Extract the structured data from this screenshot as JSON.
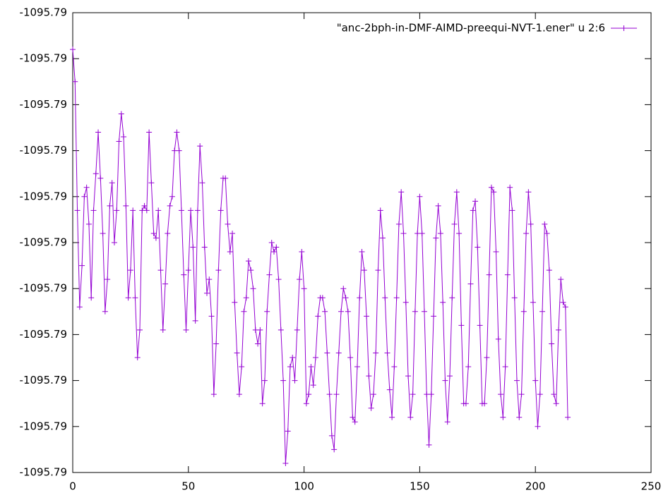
{
  "chart_data": {
    "type": "line",
    "x": [
      0,
      1,
      2,
      3,
      4,
      5,
      6,
      7,
      8,
      9,
      10,
      11,
      12,
      13,
      14,
      15,
      16,
      17,
      18,
      19,
      20,
      21,
      22,
      23,
      24,
      25,
      26,
      27,
      28,
      29,
      30,
      31,
      32,
      33,
      34,
      35,
      36,
      37,
      38,
      39,
      40,
      41,
      42,
      43,
      44,
      45,
      46,
      47,
      48,
      49,
      50,
      51,
      52,
      53,
      54,
      55,
      56,
      57,
      58,
      59,
      60,
      61,
      62,
      63,
      64,
      65,
      66,
      67,
      68,
      69,
      70,
      71,
      72,
      73,
      74,
      75,
      76,
      77,
      78,
      79,
      80,
      81,
      82,
      83,
      84,
      85,
      86,
      87,
      88,
      89,
      90,
      91,
      92,
      93,
      94,
      95,
      96,
      97,
      98,
      99,
      100,
      101,
      102,
      103,
      104,
      105,
      106,
      107,
      108,
      109,
      110,
      111,
      112,
      113,
      114,
      115,
      116,
      117,
      118,
      119,
      120,
      121,
      122,
      123,
      124,
      125,
      126,
      127,
      128,
      129,
      130,
      131,
      132,
      133,
      134,
      135,
      136,
      137,
      138,
      139,
      140,
      141,
      142,
      143,
      144,
      145,
      146,
      147,
      148,
      149,
      150,
      151,
      152,
      153,
      154,
      155,
      156,
      157,
      158,
      159,
      160,
      161,
      162,
      163,
      164,
      165,
      166,
      167,
      168,
      169,
      170,
      171,
      172,
      173,
      174,
      175,
      176,
      177,
      178,
      179,
      180,
      181,
      182,
      183,
      184,
      185,
      186,
      187,
      188,
      189,
      190,
      191,
      192,
      193,
      194,
      195,
      196,
      197,
      198,
      199,
      200,
      201,
      202,
      203,
      204,
      205,
      206,
      207,
      208,
      209,
      210,
      211,
      212,
      213,
      214
    ],
    "series": [
      {
        "name": "\"anc-2bph-in-DMF-AIMD-preequi-NVT-1.ener\" u 2:6",
        "color": "#9400d3",
        "values": [
          -1095.7874,
          -1095.78775,
          -1095.78915,
          -1095.7902,
          -1095.78975,
          -1095.789,
          -1095.7889,
          -1095.7893,
          -1095.7901,
          -1095.78915,
          -1095.78875,
          -1095.7883,
          -1095.7888,
          -1095.7894,
          -1095.79025,
          -1095.7899,
          -1095.7891,
          -1095.78885,
          -1095.7895,
          -1095.78915,
          -1095.7884,
          -1095.7881,
          -1095.78835,
          -1095.7891,
          -1095.7901,
          -1095.7898,
          -1095.78915,
          -1095.7901,
          -1095.79075,
          -1095.79045,
          -1095.78915,
          -1095.7891,
          -1095.78915,
          -1095.7883,
          -1095.78885,
          -1095.7894,
          -1095.78945,
          -1095.78915,
          -1095.7898,
          -1095.79045,
          -1095.78995,
          -1095.7894,
          -1095.7891,
          -1095.789,
          -1095.7885,
          -1095.7883,
          -1095.7885,
          -1095.78915,
          -1095.78985,
          -1095.79045,
          -1095.7898,
          -1095.78915,
          -1095.78955,
          -1095.79035,
          -1095.78915,
          -1095.78845,
          -1095.78885,
          -1095.78955,
          -1095.79005,
          -1095.7899,
          -1095.7903,
          -1095.79115,
          -1095.7906,
          -1095.7898,
          -1095.78915,
          -1095.7888,
          -1095.7888,
          -1095.7893,
          -1095.7896,
          -1095.7894,
          -1095.79015,
          -1095.7907,
          -1095.79115,
          -1095.79085,
          -1095.79025,
          -1095.7901,
          -1095.7897,
          -1095.7898,
          -1095.79,
          -1095.79045,
          -1095.7906,
          -1095.79045,
          -1095.79125,
          -1095.791,
          -1095.79025,
          -1095.78985,
          -1095.7895,
          -1095.7896,
          -1095.78955,
          -1095.7899,
          -1095.79045,
          -1095.791,
          -1095.7919,
          -1095.79155,
          -1095.79085,
          -1095.79075,
          -1095.791,
          -1095.79045,
          -1095.7899,
          -1095.7896,
          -1095.79,
          -1095.79125,
          -1095.79115,
          -1095.79085,
          -1095.79105,
          -1095.79075,
          -1095.7903,
          -1095.7901,
          -1095.7901,
          -1095.79025,
          -1095.7907,
          -1095.79115,
          -1095.7916,
          -1095.79175,
          -1095.79115,
          -1095.7907,
          -1095.79025,
          -1095.79,
          -1095.7901,
          -1095.79025,
          -1095.79075,
          -1095.7914,
          -1095.79145,
          -1095.79085,
          -1095.7901,
          -1095.7896,
          -1095.7898,
          -1095.7903,
          -1095.79095,
          -1095.7913,
          -1095.79115,
          -1095.7907,
          -1095.7898,
          -1095.78915,
          -1095.78945,
          -1095.7901,
          -1095.7907,
          -1095.7911,
          -1095.7914,
          -1095.79085,
          -1095.7901,
          -1095.7893,
          -1095.78895,
          -1095.7894,
          -1095.79015,
          -1095.79095,
          -1095.7914,
          -1095.79115,
          -1095.79025,
          -1095.7894,
          -1095.789,
          -1095.7894,
          -1095.79025,
          -1095.79115,
          -1095.7917,
          -1095.79115,
          -1095.7903,
          -1095.78945,
          -1095.7891,
          -1095.7894,
          -1095.79015,
          -1095.791,
          -1095.79145,
          -1095.79095,
          -1095.7901,
          -1095.7893,
          -1095.78895,
          -1095.7894,
          -1095.7904,
          -1095.79125,
          -1095.79125,
          -1095.79085,
          -1095.78995,
          -1095.78915,
          -1095.78905,
          -1095.78955,
          -1095.7904,
          -1095.79125,
          -1095.79125,
          -1095.79075,
          -1095.78985,
          -1095.7889,
          -1095.78895,
          -1095.7896,
          -1095.79055,
          -1095.79115,
          -1095.7914,
          -1095.79085,
          -1095.78985,
          -1095.7889,
          -1095.78915,
          -1095.7901,
          -1095.791,
          -1095.7914,
          -1095.79115,
          -1095.79025,
          -1095.7894,
          -1095.78895,
          -1095.7893,
          -1095.79015,
          -1095.791,
          -1095.7915,
          -1095.79115,
          -1095.79025,
          -1095.7893,
          -1095.7894,
          -1095.7898,
          -1095.7906,
          -1095.79115,
          -1095.79125,
          -1095.79045,
          -1095.7899,
          -1095.79015,
          -1095.7902,
          -1095.7914
        ]
      }
    ],
    "xlim": [
      0,
      250
    ],
    "xticks": [
      0,
      50,
      100,
      150,
      200,
      250
    ],
    "ylim": [
      -1095.792,
      -1095.787
    ],
    "yticks": [
      {
        "value": -1095.792,
        "label": "-1095.79"
      },
      {
        "value": -1095.7915,
        "label": "-1095.79"
      },
      {
        "value": -1095.791,
        "label": "-1095.79"
      },
      {
        "value": -1095.7905,
        "label": "-1095.79"
      },
      {
        "value": -1095.79,
        "label": "-1095.79"
      },
      {
        "value": -1095.7895,
        "label": "-1095.79"
      },
      {
        "value": -1095.789,
        "label": "-1095.79"
      },
      {
        "value": -1095.7885,
        "label": "-1095.79"
      },
      {
        "value": -1095.788,
        "label": "-1095.79"
      },
      {
        "value": -1095.7875,
        "label": "-1095.79"
      },
      {
        "value": -1095.787,
        "label": "-1095.79"
      }
    ],
    "grid": false,
    "legend": "top-right"
  }
}
